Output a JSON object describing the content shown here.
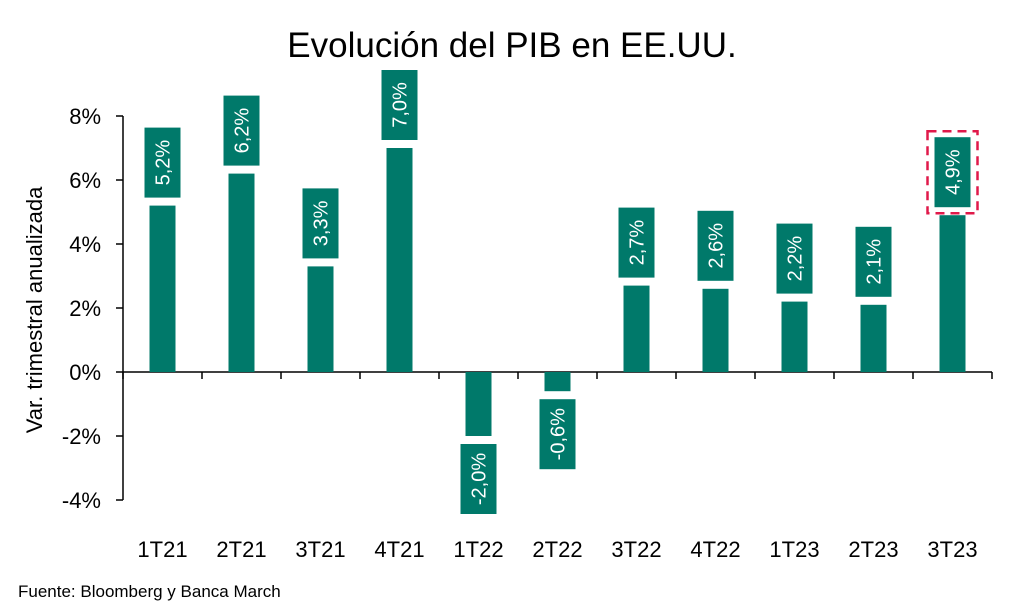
{
  "chart_data": {
    "type": "bar",
    "title": "Evolución del PIB en EE.UU.",
    "xlabel": "",
    "ylabel": "Var. trimestral anualizada",
    "categories": [
      "1T21",
      "2T21",
      "3T21",
      "4T21",
      "1T22",
      "2T22",
      "3T22",
      "4T22",
      "1T23",
      "2T23",
      "3T23"
    ],
    "values": [
      5.2,
      6.2,
      3.3,
      7.0,
      -2.0,
      -0.6,
      2.7,
      2.6,
      2.2,
      2.1,
      4.9
    ],
    "data_labels": [
      "5,2%",
      "6,2%",
      "3,3%",
      "7,0%",
      "-2,0%",
      "-0,6%",
      "2,7%",
      "2,6%",
      "2,2%",
      "2,1%",
      "4,9%"
    ],
    "ylim": [
      -4,
      8
    ],
    "yticks": [
      -4,
      -2,
      0,
      2,
      4,
      6,
      8
    ],
    "ytick_labels": [
      "-4%",
      "-2%",
      "0%",
      "2%",
      "4%",
      "6%",
      "8%"
    ],
    "grid": false,
    "highlighted_category": "3T23",
    "colors": {
      "bar": "#00796a",
      "highlight_border": "#e0194a",
      "axis": "#000000"
    }
  },
  "source": "Fuente: Bloomberg y Banca March"
}
